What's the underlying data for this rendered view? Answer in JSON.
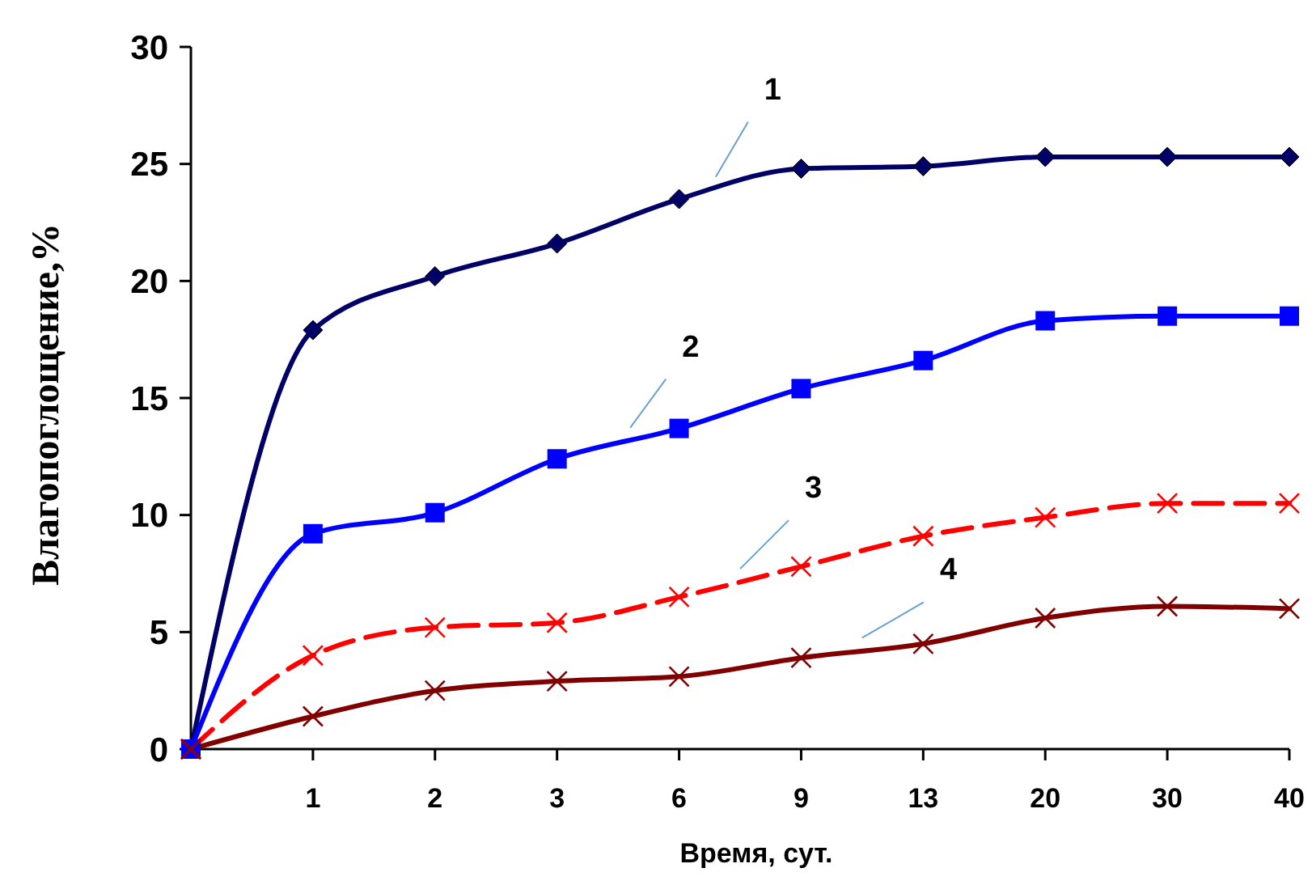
{
  "chart_data": {
    "type": "line",
    "xlabel": "Время, сут.",
    "ylabel": "Влагопоглощение,%",
    "categories": [
      null,
      "1",
      "2",
      "3",
      "6",
      "9",
      "13",
      "20",
      "30",
      "40"
    ],
    "ylim": [
      0,
      30
    ],
    "yticks": [
      0,
      5,
      10,
      15,
      20,
      25,
      30
    ],
    "grid": false,
    "series": [
      {
        "name": "1",
        "color": "#000066",
        "marker": "diamond",
        "line_style": "solid",
        "values": [
          0,
          17.9,
          20.2,
          21.6,
          23.5,
          24.8,
          24.9,
          25.3,
          25.3,
          25.3
        ]
      },
      {
        "name": "2",
        "color": "#0000ff",
        "marker": "square",
        "line_style": "solid",
        "values": [
          0,
          9.2,
          10.1,
          12.4,
          13.7,
          15.4,
          16.6,
          18.3,
          18.5,
          18.5
        ]
      },
      {
        "name": "3",
        "color": "#ff0000",
        "marker": "cross",
        "line_style": "dashed",
        "values": [
          0,
          4.0,
          5.2,
          5.4,
          6.5,
          7.8,
          9.1,
          9.9,
          10.5,
          10.5
        ]
      },
      {
        "name": "4",
        "color": "#800000",
        "marker": "cross",
        "line_style": "solid",
        "values": [
          0,
          1.4,
          2.5,
          2.9,
          3.1,
          3.9,
          4.5,
          5.6,
          6.1,
          6.0
        ]
      }
    ]
  }
}
